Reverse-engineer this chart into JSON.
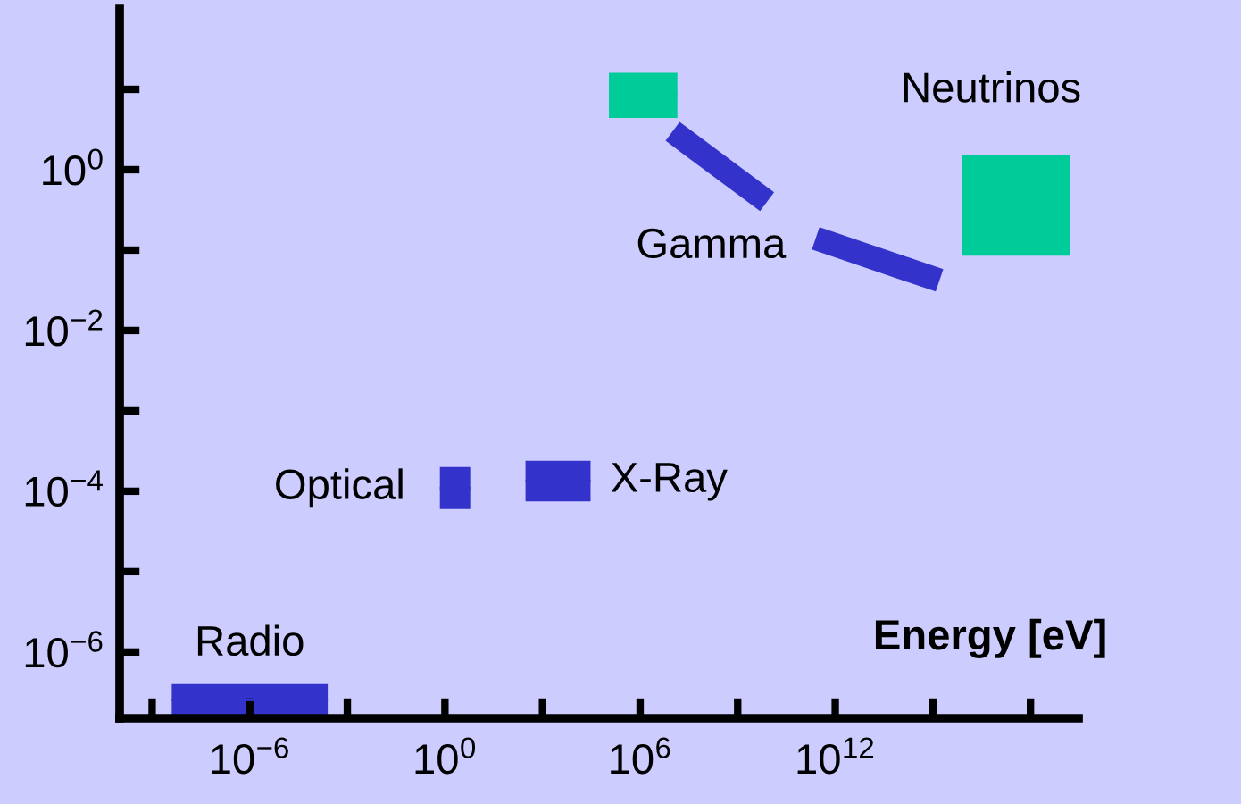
{
  "chart_data": {
    "type": "line",
    "xlabel": "Energy [eV]",
    "log": "xy",
    "grid": false,
    "legend": false,
    "xlim": [
      1e-10,
      3e+19
    ],
    "ylim": [
      1.5e-07,
      100
    ],
    "xticks": [
      {
        "value": 1e-09,
        "label": null
      },
      {
        "value": 1e-06,
        "label": "10$^{−6}$"
      },
      {
        "value": 0.001,
        "label": null
      },
      {
        "value": 1,
        "label": "10$^{0}$"
      },
      {
        "value": 1000.0,
        "label": null
      },
      {
        "value": 1000000.0,
        "label": "10$^{6}$"
      },
      {
        "value": 1000000000.0,
        "label": null
      },
      {
        "value": 1000000000000.0,
        "label": "10$^{12}$"
      },
      {
        "value": 1000000000000000.0,
        "label": null
      },
      {
        "value": 1e+18,
        "label": null
      }
    ],
    "yticks": [
      {
        "value": 1e-06,
        "label": "10$^{−6}$"
      },
      {
        "value": 1e-05,
        "label": null
      },
      {
        "value": 0.0001,
        "label": "10$^{−4}$"
      },
      {
        "value": 0.001,
        "label": null
      },
      {
        "value": 0.01,
        "label": "10$^{−2}$"
      },
      {
        "value": 0.1,
        "label": null
      },
      {
        "value": 1,
        "label": "10$^{0}$"
      },
      {
        "value": 10,
        "label": null
      }
    ],
    "series": [
      {
        "name": "Radio",
        "type": "bar",
        "color": "#3333cc",
        "x": [
          3e-06
        ],
        "xerrors": [
          [
            4e-09,
            0.00025
          ]
        ],
        "base": [
          1.6e-07
        ],
        "values": [
          2.4e-07
        ]
      },
      {
        "name": "Optical",
        "type": "bar",
        "color": "#3333cc",
        "x": [
          2
        ],
        "xerrors": [
          [
            0.7,
            6
          ]
        ],
        "base": [
          6e-05
        ],
        "values": [
          0.00014
        ]
      },
      {
        "name": "X-Ray",
        "type": "bar",
        "color": "#3333cc",
        "x": [
          3000
        ],
        "xerrors": [
          [
            300,
            30000
          ]
        ],
        "base": [
          7.5e-05
        ],
        "values": [
          0.000165
        ]
      },
      {
        "type": "bar",
        "color": "#00cc99",
        "x": [
          1200000.0
        ],
        "xerrors": [
          [
            110000.0,
            14000000.0
          ]
        ],
        "base": [
          4.4
        ],
        "values": [
          11.6
        ]
      },
      {
        "color": "#3333cc",
        "x": [
          10000000.0,
          8000000000.0
        ],
        "values": [
          3,
          0.4
        ]
      },
      {
        "name": "Gamma",
        "color": "#3333cc",
        "x": [
          250000000000.0,
          1600000000000000.0
        ],
        "values": [
          0.14,
          0.042
        ]
      },
      {
        "name": "Neutrinos",
        "type": "bar",
        "color": "#00cc99",
        "x": [
          1.1e+17
        ],
        "xerrors": [
          [
            8000000000000000.0,
            1.6e+19
          ]
        ],
        "base": [
          0.085
        ],
        "values": [
          1.415
        ]
      }
    ]
  }
}
